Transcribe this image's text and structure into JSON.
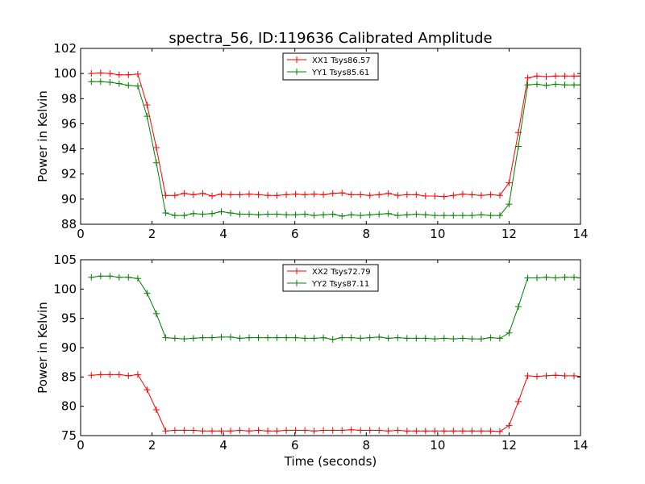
{
  "title": "spectra_56, ID:119636 Calibrated Amplitude",
  "chart_data": [
    {
      "type": "line",
      "xlabel": "",
      "ylabel": "Power in Kelvin",
      "xlim": [
        0,
        14
      ],
      "ylim": [
        88,
        102
      ],
      "xticks": [
        "0",
        "2",
        "4",
        "6",
        "8",
        "10",
        "12",
        "14"
      ],
      "yticks": [
        "88",
        "90",
        "92",
        "94",
        "96",
        "98",
        "100",
        "102"
      ],
      "grid": false,
      "legend_position": "top-center",
      "x": [
        0.3,
        0.56,
        0.82,
        1.08,
        1.34,
        1.6,
        1.86,
        2.12,
        2.38,
        2.64,
        2.9,
        3.16,
        3.42,
        3.68,
        3.94,
        4.2,
        4.46,
        4.72,
        4.98,
        5.24,
        5.5,
        5.76,
        6.02,
        6.28,
        6.54,
        6.8,
        7.06,
        7.32,
        7.58,
        7.84,
        8.1,
        8.36,
        8.62,
        8.88,
        9.14,
        9.4,
        9.66,
        9.92,
        10.18,
        10.44,
        10.7,
        10.96,
        11.22,
        11.48,
        11.74,
        12.0,
        12.26,
        12.52,
        12.78,
        13.04,
        13.3,
        13.56,
        13.82,
        14.0
      ],
      "series": [
        {
          "name": "XX1 Tsys86.57",
          "color": "#ff0000",
          "values": [
            100.0,
            100.05,
            100.0,
            99.9,
            99.9,
            99.95,
            97.5,
            94.1,
            90.3,
            90.3,
            90.45,
            90.35,
            90.45,
            90.25,
            90.4,
            90.35,
            90.35,
            90.4,
            90.35,
            90.3,
            90.3,
            90.35,
            90.4,
            90.35,
            90.4,
            90.35,
            90.45,
            90.5,
            90.35,
            90.35,
            90.3,
            90.35,
            90.45,
            90.3,
            90.35,
            90.35,
            90.25,
            90.25,
            90.2,
            90.3,
            90.4,
            90.35,
            90.3,
            90.35,
            90.3,
            91.3,
            95.3,
            99.65,
            99.8,
            99.75,
            99.8,
            99.8,
            99.8,
            99.8
          ]
        },
        {
          "name": "YY1 Tsys85.61",
          "color": "#008000",
          "values": [
            99.35,
            99.35,
            99.3,
            99.2,
            99.05,
            99.0,
            96.6,
            92.9,
            88.9,
            88.7,
            88.7,
            88.85,
            88.8,
            88.85,
            89.0,
            88.9,
            88.8,
            88.8,
            88.75,
            88.8,
            88.8,
            88.75,
            88.75,
            88.8,
            88.7,
            88.75,
            88.8,
            88.65,
            88.75,
            88.7,
            88.75,
            88.8,
            88.85,
            88.7,
            88.75,
            88.8,
            88.75,
            88.7,
            88.7,
            88.7,
            88.7,
            88.7,
            88.75,
            88.7,
            88.7,
            89.6,
            94.2,
            99.1,
            99.15,
            99.05,
            99.15,
            99.1,
            99.1,
            99.1
          ]
        }
      ]
    },
    {
      "type": "line",
      "xlabel": "Time (seconds)",
      "ylabel": "Power in Kelvin",
      "xlim": [
        0,
        14
      ],
      "ylim": [
        75,
        105
      ],
      "xticks": [
        "0",
        "2",
        "4",
        "6",
        "8",
        "10",
        "12",
        "14"
      ],
      "yticks": [
        "75",
        "80",
        "85",
        "90",
        "95",
        "100",
        "105"
      ],
      "grid": false,
      "legend_position": "top-center",
      "x": [
        0.3,
        0.56,
        0.82,
        1.08,
        1.34,
        1.6,
        1.86,
        2.12,
        2.38,
        2.64,
        2.9,
        3.16,
        3.42,
        3.68,
        3.94,
        4.2,
        4.46,
        4.72,
        4.98,
        5.24,
        5.5,
        5.76,
        6.02,
        6.28,
        6.54,
        6.8,
        7.06,
        7.32,
        7.58,
        7.84,
        8.1,
        8.36,
        8.62,
        8.88,
        9.14,
        9.4,
        9.66,
        9.92,
        10.18,
        10.44,
        10.7,
        10.96,
        11.22,
        11.48,
        11.74,
        12.0,
        12.26,
        12.52,
        12.78,
        13.04,
        13.3,
        13.56,
        13.82,
        14.0
      ],
      "series": [
        {
          "name": "XX2 Tsys72.79",
          "color": "#ff0000",
          "values": [
            85.3,
            85.4,
            85.4,
            85.4,
            85.2,
            85.4,
            82.8,
            79.4,
            75.8,
            75.9,
            75.9,
            75.9,
            75.8,
            75.8,
            75.8,
            75.8,
            75.9,
            75.8,
            75.9,
            75.8,
            75.8,
            75.9,
            75.9,
            75.9,
            75.8,
            75.9,
            75.9,
            75.9,
            76.0,
            75.9,
            75.9,
            75.9,
            75.8,
            75.9,
            75.8,
            75.8,
            75.8,
            75.8,
            75.8,
            75.8,
            75.8,
            75.8,
            75.8,
            75.8,
            75.7,
            76.7,
            80.8,
            85.2,
            85.1,
            85.2,
            85.3,
            85.2,
            85.2,
            85.1
          ]
        },
        {
          "name": "YY2 Tsys87.11",
          "color": "#008000",
          "values": [
            102.0,
            102.2,
            102.2,
            102.0,
            102.0,
            101.8,
            99.3,
            95.8,
            91.7,
            91.6,
            91.5,
            91.6,
            91.7,
            91.7,
            91.8,
            91.8,
            91.6,
            91.7,
            91.7,
            91.7,
            91.7,
            91.7,
            91.7,
            91.6,
            91.6,
            91.7,
            91.4,
            91.7,
            91.7,
            91.6,
            91.7,
            91.8,
            91.6,
            91.7,
            91.6,
            91.6,
            91.6,
            91.5,
            91.6,
            91.5,
            91.6,
            91.5,
            91.5,
            91.7,
            91.6,
            92.5,
            97.0,
            101.9,
            101.9,
            102.0,
            101.9,
            102.0,
            102.0,
            101.9
          ]
        }
      ]
    }
  ]
}
